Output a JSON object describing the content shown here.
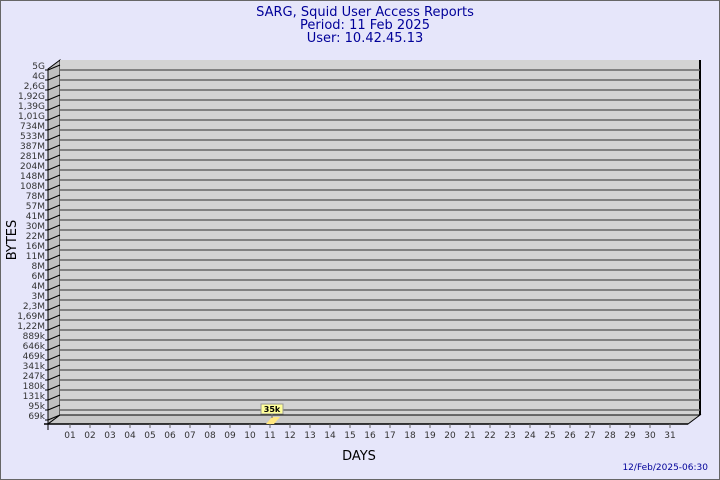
{
  "title_lines": [
    "SARG, Squid User Access Reports",
    "Period: 11 Feb 2025",
    "User: 10.42.45.13"
  ],
  "footer_timestamp": "12/Feb/2025-06:30",
  "colors": {
    "background": "#e6e6fa",
    "wall": "#d3d3d3",
    "title": "#000099",
    "bar": "#ffe680",
    "label_box": "#ffff99"
  },
  "chart_data": {
    "type": "bar",
    "xlabel": "DAYS",
    "ylabel": "BYTES",
    "y_scale": "log",
    "y_tick_labels": [
      "5G",
      "4G",
      "2,6G",
      "1,92G",
      "1,39G",
      "1,01G",
      "734M",
      "533M",
      "387M",
      "281M",
      "204M",
      "148M",
      "108M",
      "78M",
      "57M",
      "41M",
      "30M",
      "22M",
      "16M",
      "11M",
      "8M",
      "6M",
      "4M",
      "3M",
      "2,3M",
      "1,69M",
      "1,22M",
      "889k",
      "646k",
      "469k",
      "341k",
      "247k",
      "180k",
      "131k",
      "95k",
      "69k"
    ],
    "categories": [
      "01",
      "02",
      "03",
      "04",
      "05",
      "06",
      "07",
      "08",
      "09",
      "10",
      "11",
      "12",
      "13",
      "14",
      "15",
      "16",
      "17",
      "18",
      "19",
      "20",
      "21",
      "22",
      "23",
      "24",
      "25",
      "26",
      "27",
      "28",
      "29",
      "30",
      "31"
    ],
    "bars": [
      {
        "day": "11",
        "value": 35000,
        "label": "35k"
      }
    ],
    "grid": true
  }
}
